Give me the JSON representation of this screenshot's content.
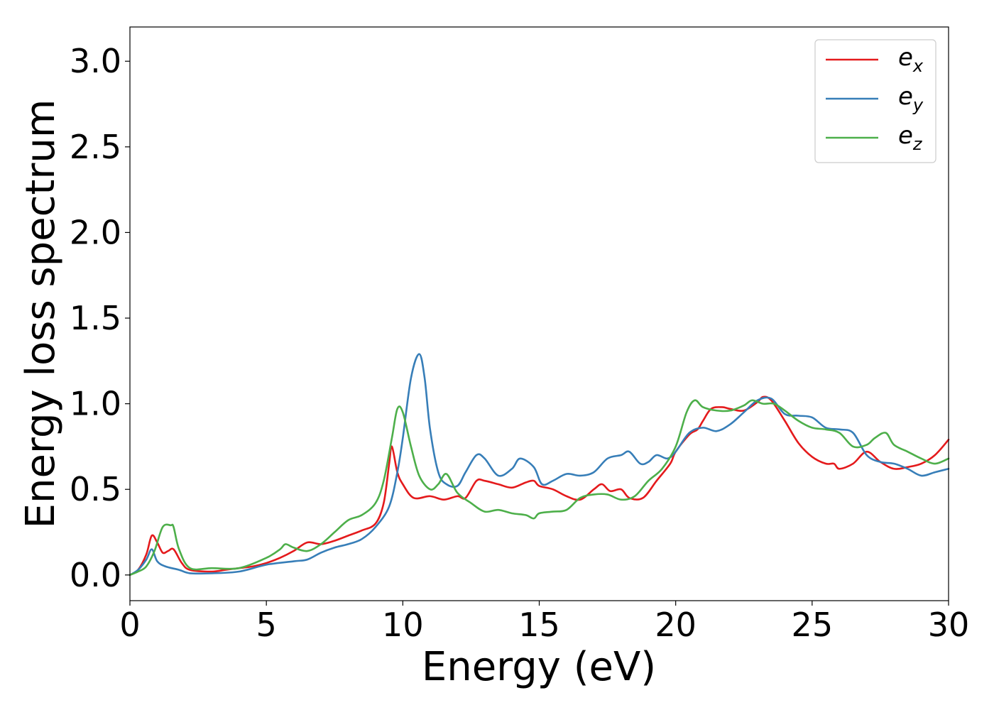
{
  "chart_data": {
    "type": "line",
    "xlabel": "Energy (eV)",
    "ylabel": "Energy loss spectrum",
    "xlim": [
      0,
      30
    ],
    "ylim": [
      -0.15,
      3.2
    ],
    "xticks": [
      0,
      5,
      10,
      15,
      20,
      25,
      30
    ],
    "yticks": [
      0.0,
      0.5,
      1.0,
      1.5,
      2.0,
      2.5,
      3.0
    ],
    "xtick_labels": [
      "0",
      "5",
      "10",
      "15",
      "20",
      "25",
      "30"
    ],
    "ytick_labels": [
      "0.0",
      "0.5",
      "1.0",
      "1.5",
      "2.0",
      "2.5",
      "3.0"
    ],
    "grid": false,
    "legend_position": "top-right",
    "series": [
      {
        "name": "e_x",
        "legend_base": "e",
        "legend_sub": "x",
        "color": "#e41a1c",
        "points": [
          [
            0,
            0
          ],
          [
            0.3,
            0.03
          ],
          [
            0.6,
            0.12
          ],
          [
            0.8,
            0.23
          ],
          [
            1.0,
            0.19
          ],
          [
            1.2,
            0.13
          ],
          [
            1.4,
            0.14
          ],
          [
            1.6,
            0.15
          ],
          [
            1.9,
            0.07
          ],
          [
            2.2,
            0.03
          ],
          [
            3,
            0.02
          ],
          [
            3.5,
            0.03
          ],
          [
            4,
            0.04
          ],
          [
            4.5,
            0.05
          ],
          [
            5,
            0.07
          ],
          [
            5.5,
            0.1
          ],
          [
            6,
            0.14
          ],
          [
            6.5,
            0.19
          ],
          [
            7,
            0.18
          ],
          [
            7.5,
            0.2
          ],
          [
            8,
            0.23
          ],
          [
            8.5,
            0.26
          ],
          [
            9,
            0.3
          ],
          [
            9.3,
            0.42
          ],
          [
            9.5,
            0.65
          ],
          [
            9.6,
            0.75
          ],
          [
            9.8,
            0.6
          ],
          [
            10,
            0.53
          ],
          [
            10.4,
            0.45
          ],
          [
            11,
            0.46
          ],
          [
            11.5,
            0.44
          ],
          [
            12,
            0.46
          ],
          [
            12.3,
            0.45
          ],
          [
            12.7,
            0.55
          ],
          [
            13,
            0.55
          ],
          [
            13.5,
            0.53
          ],
          [
            14,
            0.51
          ],
          [
            14.5,
            0.54
          ],
          [
            14.8,
            0.55
          ],
          [
            15,
            0.52
          ],
          [
            15.5,
            0.5
          ],
          [
            16,
            0.46
          ],
          [
            16.5,
            0.44
          ],
          [
            17,
            0.5
          ],
          [
            17.3,
            0.53
          ],
          [
            17.6,
            0.49
          ],
          [
            18,
            0.5
          ],
          [
            18.3,
            0.45
          ],
          [
            18.8,
            0.45
          ],
          [
            19.3,
            0.55
          ],
          [
            19.8,
            0.65
          ],
          [
            20,
            0.72
          ],
          [
            20.5,
            0.82
          ],
          [
            20.8,
            0.85
          ],
          [
            21,
            0.9
          ],
          [
            21.3,
            0.97
          ],
          [
            21.7,
            0.98
          ],
          [
            22,
            0.97
          ],
          [
            22.5,
            0.96
          ],
          [
            23,
            1.01
          ],
          [
            23.2,
            1.04
          ],
          [
            23.5,
            1.02
          ],
          [
            24,
            0.9
          ],
          [
            24.5,
            0.77
          ],
          [
            25,
            0.69
          ],
          [
            25.5,
            0.65
          ],
          [
            25.8,
            0.65
          ],
          [
            26,
            0.62
          ],
          [
            26.5,
            0.65
          ],
          [
            27,
            0.72
          ],
          [
            27.5,
            0.66
          ],
          [
            28,
            0.62
          ],
          [
            28.5,
            0.63
          ],
          [
            29,
            0.65
          ],
          [
            29.5,
            0.7
          ],
          [
            30,
            0.79
          ]
        ]
      },
      {
        "name": "e_y",
        "legend_base": "e",
        "legend_sub": "y",
        "color": "#377eb8",
        "points": [
          [
            0,
            0
          ],
          [
            0.3,
            0.03
          ],
          [
            0.6,
            0.09
          ],
          [
            0.8,
            0.15
          ],
          [
            1.0,
            0.08
          ],
          [
            1.3,
            0.05
          ],
          [
            1.8,
            0.03
          ],
          [
            2.2,
            0.01
          ],
          [
            3,
            0.01
          ],
          [
            4,
            0.02
          ],
          [
            5,
            0.06
          ],
          [
            6,
            0.08
          ],
          [
            6.5,
            0.09
          ],
          [
            7,
            0.13
          ],
          [
            7.5,
            0.16
          ],
          [
            8,
            0.18
          ],
          [
            8.5,
            0.21
          ],
          [
            9,
            0.28
          ],
          [
            9.5,
            0.4
          ],
          [
            9.8,
            0.6
          ],
          [
            10,
            0.8
          ],
          [
            10.3,
            1.15
          ],
          [
            10.6,
            1.29
          ],
          [
            10.8,
            1.15
          ],
          [
            11,
            0.85
          ],
          [
            11.3,
            0.6
          ],
          [
            11.6,
            0.53
          ],
          [
            12,
            0.52
          ],
          [
            12.3,
            0.6
          ],
          [
            12.7,
            0.7
          ],
          [
            13,
            0.68
          ],
          [
            13.5,
            0.58
          ],
          [
            14,
            0.62
          ],
          [
            14.3,
            0.68
          ],
          [
            14.8,
            0.63
          ],
          [
            15.1,
            0.53
          ],
          [
            15.5,
            0.55
          ],
          [
            16,
            0.59
          ],
          [
            16.5,
            0.58
          ],
          [
            17,
            0.6
          ],
          [
            17.5,
            0.68
          ],
          [
            18,
            0.7
          ],
          [
            18.3,
            0.72
          ],
          [
            18.7,
            0.65
          ],
          [
            19,
            0.66
          ],
          [
            19.3,
            0.7
          ],
          [
            19.7,
            0.68
          ],
          [
            20,
            0.72
          ],
          [
            20.5,
            0.83
          ],
          [
            21,
            0.86
          ],
          [
            21.5,
            0.84
          ],
          [
            22,
            0.88
          ],
          [
            22.5,
            0.95
          ],
          [
            23,
            1.02
          ],
          [
            23.5,
            1.03
          ],
          [
            24,
            0.94
          ],
          [
            24.5,
            0.93
          ],
          [
            25,
            0.92
          ],
          [
            25.5,
            0.86
          ],
          [
            26,
            0.85
          ],
          [
            26.5,
            0.83
          ],
          [
            27,
            0.7
          ],
          [
            27.5,
            0.66
          ],
          [
            28,
            0.65
          ],
          [
            28.5,
            0.62
          ],
          [
            29,
            0.58
          ],
          [
            29.5,
            0.6
          ],
          [
            30,
            0.62
          ]
        ]
      },
      {
        "name": "e_z",
        "legend_base": "e",
        "legend_sub": "z",
        "color": "#4daf4a",
        "points": [
          [
            0,
            0
          ],
          [
            0.3,
            0.02
          ],
          [
            0.6,
            0.05
          ],
          [
            0.9,
            0.14
          ],
          [
            1.2,
            0.28
          ],
          [
            1.5,
            0.29
          ],
          [
            1.6,
            0.28
          ],
          [
            1.8,
            0.15
          ],
          [
            2.2,
            0.04
          ],
          [
            3,
            0.04
          ],
          [
            4,
            0.04
          ],
          [
            5,
            0.1
          ],
          [
            5.5,
            0.15
          ],
          [
            5.7,
            0.18
          ],
          [
            6,
            0.16
          ],
          [
            6.5,
            0.14
          ],
          [
            7,
            0.18
          ],
          [
            7.5,
            0.25
          ],
          [
            8,
            0.32
          ],
          [
            8.5,
            0.35
          ],
          [
            9,
            0.42
          ],
          [
            9.3,
            0.55
          ],
          [
            9.6,
            0.8
          ],
          [
            9.8,
            0.97
          ],
          [
            10,
            0.95
          ],
          [
            10.3,
            0.75
          ],
          [
            10.6,
            0.58
          ],
          [
            11,
            0.5
          ],
          [
            11.3,
            0.53
          ],
          [
            11.6,
            0.59
          ],
          [
            12,
            0.48
          ],
          [
            12.5,
            0.42
          ],
          [
            13,
            0.37
          ],
          [
            13.5,
            0.38
          ],
          [
            14,
            0.36
          ],
          [
            14.5,
            0.35
          ],
          [
            14.8,
            0.33
          ],
          [
            15,
            0.36
          ],
          [
            15.5,
            0.37
          ],
          [
            16,
            0.38
          ],
          [
            16.5,
            0.45
          ],
          [
            17,
            0.47
          ],
          [
            17.5,
            0.47
          ],
          [
            18,
            0.44
          ],
          [
            18.5,
            0.46
          ],
          [
            19,
            0.55
          ],
          [
            19.5,
            0.62
          ],
          [
            20,
            0.75
          ],
          [
            20.4,
            0.95
          ],
          [
            20.7,
            1.02
          ],
          [
            21,
            0.98
          ],
          [
            21.5,
            0.96
          ],
          [
            22,
            0.96
          ],
          [
            22.5,
            0.99
          ],
          [
            22.8,
            1.02
          ],
          [
            23.2,
            1.0
          ],
          [
            23.6,
            1.0
          ],
          [
            24,
            0.96
          ],
          [
            24.5,
            0.9
          ],
          [
            25,
            0.86
          ],
          [
            25.5,
            0.85
          ],
          [
            26,
            0.83
          ],
          [
            26.5,
            0.75
          ],
          [
            27,
            0.76
          ],
          [
            27.3,
            0.8
          ],
          [
            27.7,
            0.83
          ],
          [
            28,
            0.76
          ],
          [
            28.5,
            0.72
          ],
          [
            29,
            0.68
          ],
          [
            29.5,
            0.65
          ],
          [
            30,
            0.68
          ]
        ]
      }
    ]
  }
}
